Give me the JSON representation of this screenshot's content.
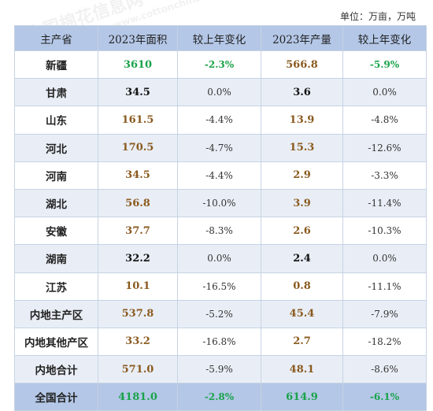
{
  "unit_note": "单位：万亩，万吨",
  "headers": [
    "主产省",
    "2023年面积",
    "较上年变化",
    "2023年产量",
    "较上年变化"
  ],
  "rows": [
    {
      "province": "新疆",
      "area": "3610",
      "area_change": "-2.3%",
      "output": "566.8",
      "output_change": "-5.9%"
    },
    {
      "province": "甘肃",
      "area": "34.5",
      "area_change": "0.0%",
      "output": "3.6",
      "output_change": "0.0%"
    },
    {
      "province": "山东",
      "area": "161.5",
      "area_change": "-4.4%",
      "output": "13.9",
      "output_change": "-4.8%"
    },
    {
      "province": "河北",
      "area": "170.5",
      "area_change": "-4.7%",
      "output": "15.3",
      "output_change": "-12.6%"
    },
    {
      "province": "河南",
      "area": "34.5",
      "area_change": "-4.4%",
      "output": "2.9",
      "output_change": "-3.3%"
    },
    {
      "province": "湖北",
      "area": "56.8",
      "area_change": "-10.0%",
      "output": "3.9",
      "output_change": "-11.4%"
    },
    {
      "province": "安徽",
      "area": "37.7",
      "area_change": "-8.3%",
      "output": "2.6",
      "output_change": "-10.3%"
    },
    {
      "province": "湖南",
      "area": "32.2",
      "area_change": "0.0%",
      "output": "2.4",
      "output_change": "0.0%"
    },
    {
      "province": "江苏",
      "area": "10.1",
      "area_change": "-16.5%",
      "output": "0.8",
      "output_change": "-11.1%"
    },
    {
      "province": "内地主产区",
      "area": "537.8",
      "area_change": "-5.2%",
      "output": "45.4",
      "output_change": "-7.9%"
    },
    {
      "province": "内地其他产区",
      "area": "33.2",
      "area_change": "-16.8%",
      "output": "2.7",
      "output_change": "-18.2%"
    },
    {
      "province": "内地合计",
      "area": "571.0",
      "area_change": "-5.9%",
      "output": "48.1",
      "output_change": "-8.6%"
    }
  ],
  "total": {
    "province": "全国合计",
    "area": "4181.0",
    "area_change": "-2.8%",
    "output": "614.9",
    "output_change": "-6.1%"
  },
  "watermark": {
    "brand": "中国棉花信息网",
    "url": "www.cottonchina.org.cn"
  },
  "colors": {
    "header_bg": "#b4c7e7",
    "stripe_bg": "#e9eef6",
    "value_brown": "#8a5a1f",
    "highlight_green": "#1aa34a"
  }
}
